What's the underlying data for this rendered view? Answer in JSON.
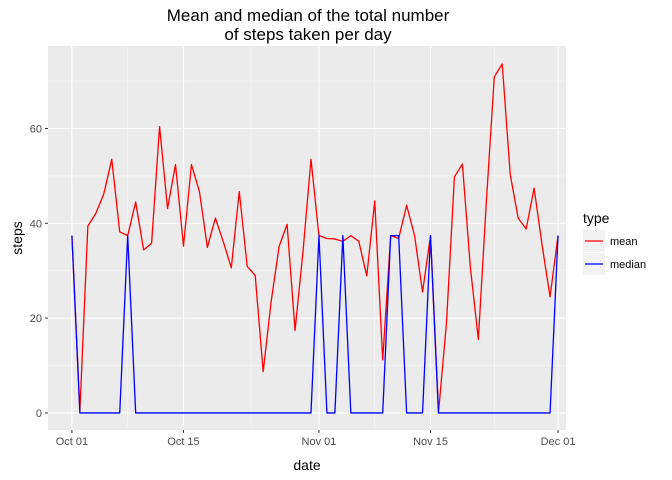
{
  "chart_data": {
    "type": "line",
    "title_line1": "Mean and median of the total number",
    "title_line2": "of steps taken per day",
    "xlabel": "date",
    "ylabel": "steps",
    "x_start": "2012-10-01",
    "x_end": "2012-11-29",
    "xlim": [
      "2012-09-28",
      "2012-12-02"
    ],
    "ylim": [
      -3.6,
      77.4
    ],
    "grid": true,
    "x_ticks": [
      {
        "date": "2012-10-01",
        "label": "Oct 01"
      },
      {
        "date": "2012-10-15",
        "label": "Oct 15"
      },
      {
        "date": "2012-11-01",
        "label": "Nov 01"
      },
      {
        "date": "2012-11-15",
        "label": "Nov 15"
      },
      {
        "date": "2012-12-01",
        "label": "Dec 01"
      }
    ],
    "y_ticks": [
      0,
      20,
      40,
      60
    ],
    "legend": {
      "title": "type",
      "position": "right",
      "entries": [
        {
          "label": "mean",
          "color": "#ff0000"
        },
        {
          "label": "median",
          "color": "#0000ff"
        }
      ]
    },
    "series": [
      {
        "name": "mean",
        "color": "#ff0000",
        "values": [
          37.4,
          0.4,
          39.4,
          42.1,
          46.2,
          53.5,
          38.2,
          37.4,
          44.5,
          34.4,
          35.8,
          60.4,
          43.1,
          52.4,
          35.2,
          52.4,
          46.7,
          34.9,
          41.1,
          36.1,
          30.6,
          46.7,
          30.9,
          29.0,
          8.7,
          23.5,
          35.1,
          39.8,
          17.4,
          34.1,
          53.5,
          37.4,
          36.8,
          36.7,
          36.2,
          37.4,
          36.2,
          28.9,
          44.7,
          11.2,
          37.4,
          36.8,
          43.8,
          37.4,
          25.5,
          37.4,
          0.1,
          18.9,
          49.8,
          52.5,
          30.7,
          15.5,
          44.4,
          70.9,
          73.6,
          50.3,
          41.1,
          38.8,
          47.4,
          35.4,
          24.5,
          37.4
        ]
      },
      {
        "name": "median",
        "color": "#0000ff",
        "values": [
          37.4,
          0,
          0,
          0,
          0,
          0,
          0,
          37.4,
          0,
          0,
          0,
          0,
          0,
          0,
          0,
          0,
          0,
          0,
          0,
          0,
          0,
          0,
          0,
          0,
          0,
          0,
          0,
          0,
          0,
          0,
          0,
          37.4,
          0,
          0,
          37.4,
          0,
          0,
          0,
          0,
          0,
          37.4,
          37.4,
          0,
          0,
          0,
          37.4,
          0,
          0,
          0,
          0,
          0,
          0,
          0,
          0,
          0,
          0,
          0,
          0,
          0,
          0,
          0,
          37.4
        ]
      }
    ]
  }
}
